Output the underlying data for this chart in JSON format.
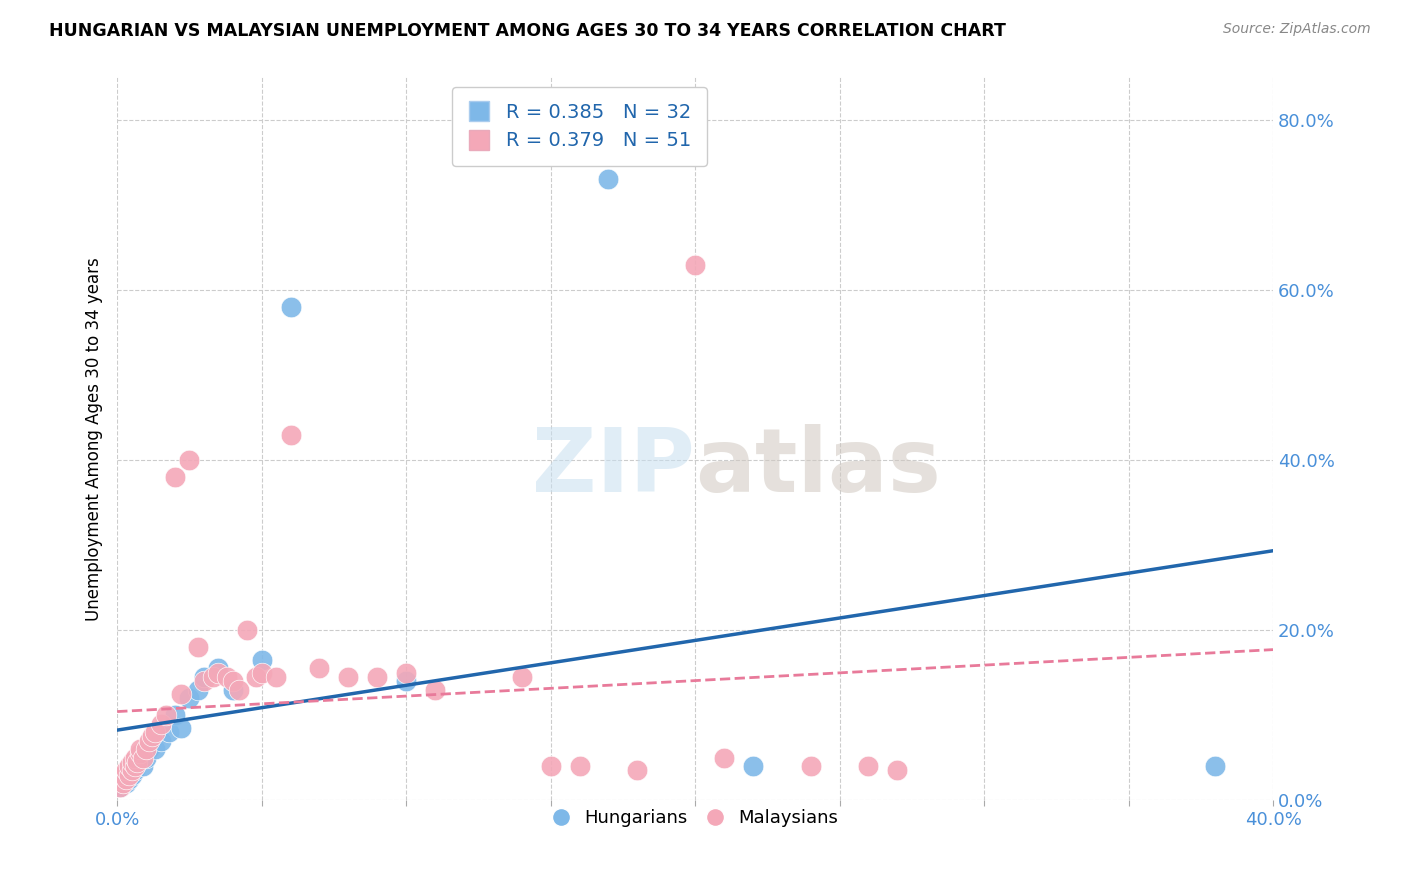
{
  "title": "HUNGARIAN VS MALAYSIAN UNEMPLOYMENT AMONG AGES 30 TO 34 YEARS CORRELATION CHART",
  "source": "Source: ZipAtlas.com",
  "ylabel": "Unemployment Among Ages 30 to 34 years",
  "xlim": [
    0.0,
    0.4
  ],
  "ylim": [
    0.0,
    0.85
  ],
  "x_ticks": [
    0.0,
    0.05,
    0.1,
    0.15,
    0.2,
    0.25,
    0.3,
    0.35,
    0.4
  ],
  "y_ticks_right": [
    0.0,
    0.2,
    0.4,
    0.6,
    0.8
  ],
  "hungarian_color": "#7eb8e8",
  "malaysian_color": "#f4a8b8",
  "hungarian_line_color": "#2166ac",
  "malaysian_line_color": "#e87a9a",
  "legend_R_hun": "0.385",
  "legend_N_hun": "32",
  "legend_R_mal": "0.379",
  "legend_N_mal": "51",
  "hun_x": [
    0.001,
    0.002,
    0.002,
    0.003,
    0.003,
    0.004,
    0.004,
    0.005,
    0.005,
    0.006,
    0.006,
    0.007,
    0.008,
    0.009,
    0.01,
    0.011,
    0.013,
    0.015,
    0.018,
    0.02,
    0.022,
    0.025,
    0.028,
    0.03,
    0.035,
    0.04,
    0.05,
    0.06,
    0.1,
    0.17,
    0.22,
    0.38
  ],
  "hun_y": [
    0.015,
    0.02,
    0.025,
    0.02,
    0.03,
    0.025,
    0.035,
    0.03,
    0.04,
    0.035,
    0.04,
    0.045,
    0.05,
    0.04,
    0.05,
    0.06,
    0.06,
    0.07,
    0.08,
    0.1,
    0.085,
    0.12,
    0.13,
    0.145,
    0.155,
    0.13,
    0.165,
    0.58,
    0.14,
    0.73,
    0.04,
    0.04
  ],
  "mal_x": [
    0.001,
    0.001,
    0.002,
    0.002,
    0.003,
    0.003,
    0.004,
    0.004,
    0.005,
    0.005,
    0.006,
    0.006,
    0.007,
    0.008,
    0.008,
    0.009,
    0.01,
    0.011,
    0.012,
    0.013,
    0.015,
    0.017,
    0.02,
    0.022,
    0.025,
    0.028,
    0.03,
    0.033,
    0.035,
    0.038,
    0.04,
    0.042,
    0.045,
    0.048,
    0.05,
    0.055,
    0.06,
    0.07,
    0.08,
    0.09,
    0.1,
    0.11,
    0.14,
    0.15,
    0.16,
    0.18,
    0.2,
    0.21,
    0.24,
    0.26,
    0.27
  ],
  "mal_y": [
    0.015,
    0.025,
    0.02,
    0.03,
    0.025,
    0.035,
    0.03,
    0.04,
    0.035,
    0.045,
    0.04,
    0.05,
    0.045,
    0.055,
    0.06,
    0.05,
    0.06,
    0.07,
    0.075,
    0.08,
    0.09,
    0.1,
    0.38,
    0.125,
    0.4,
    0.18,
    0.14,
    0.145,
    0.15,
    0.145,
    0.14,
    0.13,
    0.2,
    0.145,
    0.15,
    0.145,
    0.43,
    0.155,
    0.145,
    0.145,
    0.15,
    0.13,
    0.145,
    0.04,
    0.04,
    0.035,
    0.63,
    0.05,
    0.04,
    0.04,
    0.035
  ]
}
